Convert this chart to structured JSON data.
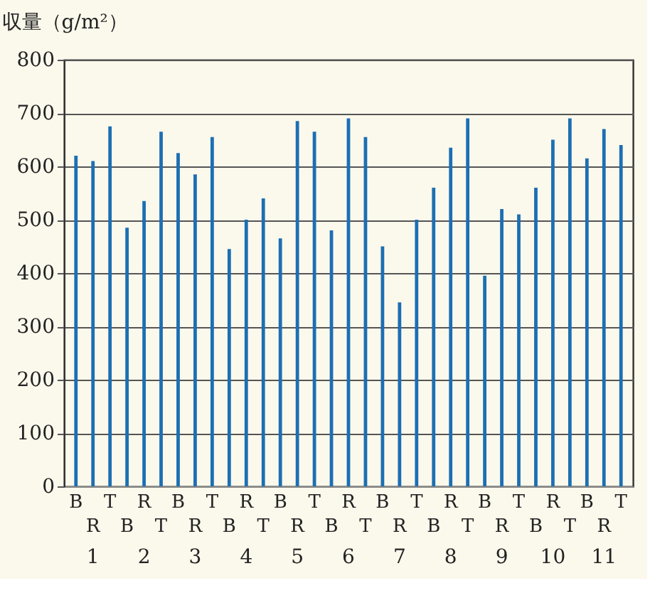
{
  "chart_data": {
    "type": "bar",
    "ylabel": "収量（g/m²）",
    "categories": [
      "B",
      "R",
      "T",
      "B",
      "R",
      "T",
      "B",
      "R",
      "T",
      "B",
      "R",
      "T",
      "B",
      "R",
      "T",
      "B",
      "R",
      "T",
      "B",
      "R",
      "T",
      "B",
      "R",
      "T",
      "B",
      "R",
      "T",
      "B",
      "R",
      "T",
      "B",
      "R",
      "T"
    ],
    "values": [
      620,
      610,
      675,
      485,
      535,
      665,
      625,
      585,
      655,
      445,
      500,
      540,
      465,
      685,
      665,
      480,
      690,
      655,
      450,
      345,
      500,
      560,
      635,
      690,
      395,
      520,
      510,
      560,
      650,
      690,
      615,
      670,
      640
    ],
    "color": "#1c6fb3",
    "ylim": [
      0,
      800
    ],
    "yticks": [
      0,
      100,
      200,
      300,
      400,
      500,
      600,
      700,
      800
    ],
    "grid": "y",
    "annotations": [
      "1",
      "2",
      "3",
      "4",
      "5",
      "6",
      "7",
      "8",
      "9",
      "10",
      "11"
    ]
  }
}
